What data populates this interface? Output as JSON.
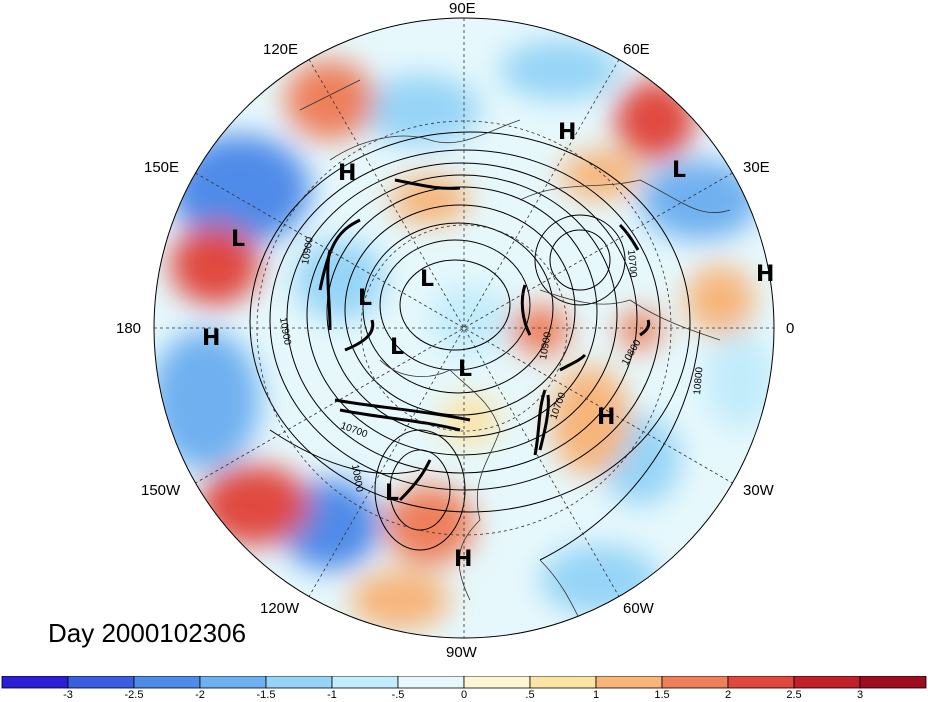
{
  "title": "Day 2000102306",
  "longitude_labels": {
    "n90e": "90E",
    "n60e": "60E",
    "n30e": "30E",
    "n0": "0",
    "n30w": "30W",
    "n60w": "60W",
    "n90w": "90W",
    "n120w": "120W",
    "n150w": "150W",
    "n180": "180",
    "n150e": "150E",
    "n120e": "120E"
  },
  "pressure_centers": [
    {
      "label": "H"
    },
    {
      "label": "H"
    },
    {
      "label": "L"
    },
    {
      "label": "H"
    },
    {
      "label": "L"
    },
    {
      "label": "H"
    },
    {
      "label": "L"
    },
    {
      "label": "L"
    },
    {
      "label": "L"
    },
    {
      "label": "L"
    },
    {
      "label": "H"
    },
    {
      "label": "L"
    },
    {
      "label": "H"
    }
  ],
  "contour_labels": [
    "10900",
    "10700",
    "10800",
    "10900",
    "10700",
    "10700",
    "10800",
    "10800",
    "10900"
  ],
  "colorbar": {
    "ticks": [
      "-3",
      "-2.5",
      "-2",
      "-1.5",
      "-1",
      "-.5",
      "0",
      ".5",
      "1",
      "1.5",
      "2",
      "2.5",
      "3"
    ],
    "colors": [
      "#2b1ed6",
      "#3b5ee0",
      "#4f8be8",
      "#6fb0f0",
      "#96d4f7",
      "#c2ecfb",
      "#e6f8fc",
      "#fdf6d4",
      "#fce3a6",
      "#f7b57a",
      "#ee7f5b",
      "#e0483f",
      "#c21f2d",
      "#9d0c1f"
    ]
  }
}
